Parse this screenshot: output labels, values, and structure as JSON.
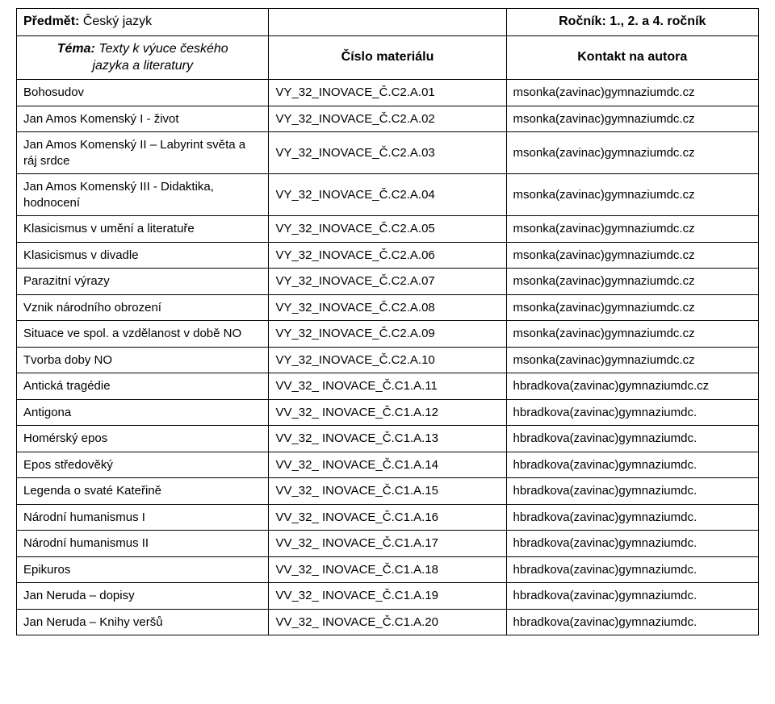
{
  "colors": {
    "background": "#ffffff",
    "text": "#000000",
    "border": "#000000"
  },
  "header": {
    "subject_label": "Předmět:",
    "subject_value": "Český jazyk",
    "grade_label": "Ročník:",
    "grade_value": "1., 2. a 4. ročník",
    "theme_label": "Téma:",
    "theme_value_line1": "Texty k výuce českého",
    "theme_value_line2": "jazyka a literatury",
    "material_number": "Číslo materiálu",
    "contact": "Kontakt na autora"
  },
  "rows": [
    {
      "topic": "Bohosudov",
      "code": "VY_32_INOVACE_Č.C2.A.01",
      "contact": "msonka(zavinac)gymnaziumdc.cz"
    },
    {
      "topic": "Jan Amos Komenský I - život",
      "code": "VY_32_INOVACE_Č.C2.A.02",
      "contact": "msonka(zavinac)gymnaziumdc.cz"
    },
    {
      "topic": "Jan Amos Komenský II – Labyrint světa a ráj srdce",
      "code": "VY_32_INOVACE_Č.C2.A.03",
      "contact": "msonka(zavinac)gymnaziumdc.cz"
    },
    {
      "topic": "Jan Amos Komenský III - Didaktika, hodnocení",
      "code": "VY_32_INOVACE_Č.C2.A.04",
      "contact": "msonka(zavinac)gymnaziumdc.cz"
    },
    {
      "topic": "Klasicismus v umění a literatuře",
      "code": "VY_32_INOVACE_Č.C2.A.05",
      "contact": "msonka(zavinac)gymnaziumdc.cz"
    },
    {
      "topic": "Klasicismus v divadle",
      "code": "VY_32_INOVACE_Č.C2.A.06",
      "contact": "msonka(zavinac)gymnaziumdc.cz"
    },
    {
      "topic": "Parazitní výrazy",
      "code": "VY_32_INOVACE_Č.C2.A.07",
      "contact": "msonka(zavinac)gymnaziumdc.cz"
    },
    {
      "topic": "Vznik národního obrození",
      "code": "VY_32_INOVACE_Č.C2.A.08",
      "contact": "msonka(zavinac)gymnaziumdc.cz"
    },
    {
      "topic": "Situace ve spol. a vzdělanost v době NO",
      "code": "VY_32_INOVACE_Č.C2.A.09",
      "contact": "msonka(zavinac)gymnaziumdc.cz"
    },
    {
      "topic": "Tvorba doby NO",
      "code": "VY_32_INOVACE_Č.C2.A.10",
      "contact": "msonka(zavinac)gymnaziumdc.cz"
    },
    {
      "topic": "Antická tragédie",
      "code": "VV_32_ INOVACE_Č.C1.A.11",
      "contact": "hbradkova(zavinac)gymnaziumdc.cz"
    },
    {
      "topic": "Antigona",
      "code": "VV_32_ INOVACE_Č.C1.A.12",
      "contact": "hbradkova(zavinac)gymnaziumdc."
    },
    {
      "topic": "Homérský epos",
      "code": "VV_32_ INOVACE_Č.C1.A.13",
      "contact": "hbradkova(zavinac)gymnaziumdc."
    },
    {
      "topic": "Epos středověký",
      "code": "VV_32_ INOVACE_Č.C1.A.14",
      "contact": "hbradkova(zavinac)gymnaziumdc."
    },
    {
      "topic": "Legenda o svaté Kateřině",
      "code": "VV_32_ INOVACE_Č.C1.A.15",
      "contact": "hbradkova(zavinac)gymnaziumdc."
    },
    {
      "topic": "Národní humanismus I",
      "code": "VV_32_ INOVACE_Č.C1.A.16",
      "contact": "hbradkova(zavinac)gymnaziumdc."
    },
    {
      "topic": "Národní humanismus II",
      "code": "VV_32_ INOVACE_Č.C1.A.17",
      "contact": "hbradkova(zavinac)gymnaziumdc."
    },
    {
      "topic": "Epikuros",
      "code": "VV_32_ INOVACE_Č.C1.A.18",
      "contact": "hbradkova(zavinac)gymnaziumdc."
    },
    {
      "topic": "Jan Neruda – dopisy",
      "code": "VV_32_ INOVACE_Č.C1.A.19",
      "contact": "hbradkova(zavinac)gymnaziumdc."
    },
    {
      "topic": "Jan Neruda – Knihy veršů",
      "code": "VV_32_ INOVACE_Č.C1.A.20",
      "contact": "hbradkova(zavinac)gymnaziumdc."
    }
  ]
}
